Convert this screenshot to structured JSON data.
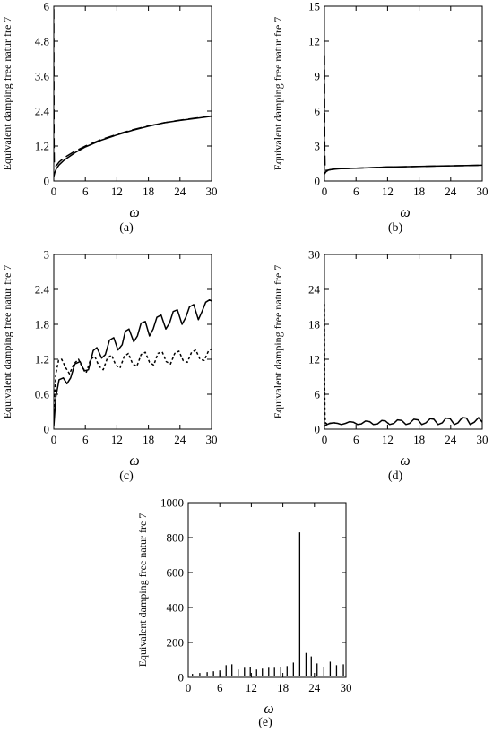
{
  "chart_data": [
    {
      "id": "a",
      "type": "line",
      "caption": "(a)",
      "xlabel": "ω",
      "ylabel": "Equivalent damping free natur fre 7",
      "xlim": [
        0,
        30
      ],
      "ylim": [
        0,
        6
      ],
      "xticks": [
        0,
        6,
        12,
        18,
        24,
        30
      ],
      "yticks": [
        0,
        1.2,
        2.4,
        3.6,
        4.8,
        6
      ],
      "ytick_labels": [
        "0",
        "1.2",
        "2.4",
        "3.6",
        "4.8",
        "6"
      ],
      "series": [
        {
          "style": "solid",
          "x": [
            0,
            0.2,
            0.5,
            1,
            2,
            4,
            6,
            9,
            12,
            15,
            18,
            21,
            24,
            27,
            30
          ],
          "values": [
            0.15,
            0.3,
            0.42,
            0.55,
            0.72,
            0.97,
            1.17,
            1.4,
            1.58,
            1.74,
            1.88,
            2.0,
            2.08,
            2.15,
            2.22
          ]
        },
        {
          "style": "dashed",
          "x": [
            0,
            0.05,
            0.1,
            0.3,
            0.6,
            1,
            2,
            4,
            6,
            9,
            12,
            15,
            18,
            21,
            24,
            27,
            30
          ],
          "values": [
            5.9,
            1.3,
            0.55,
            0.5,
            0.55,
            0.65,
            0.8,
            1.02,
            1.2,
            1.42,
            1.6,
            1.76,
            1.89,
            2.0,
            2.09,
            2.16,
            2.23
          ]
        }
      ]
    },
    {
      "id": "b",
      "type": "line",
      "caption": "(b)",
      "xlabel": "ω",
      "ylabel": "Equivalent damping free natur fre 7",
      "xlim": [
        0,
        30
      ],
      "ylim": [
        0,
        15
      ],
      "xticks": [
        0,
        6,
        12,
        18,
        24,
        30
      ],
      "yticks": [
        0,
        3,
        6,
        9,
        12,
        15
      ],
      "ytick_labels": [
        "0",
        "3",
        "6",
        "9",
        "12",
        "15"
      ],
      "series": [
        {
          "style": "solid",
          "x": [
            0,
            0.3,
            0.8,
            1.5,
            3,
            6,
            9,
            12,
            15,
            18,
            21,
            24,
            27,
            30
          ],
          "values": [
            0.6,
            0.8,
            0.95,
            1.0,
            1.05,
            1.1,
            1.15,
            1.2,
            1.22,
            1.25,
            1.28,
            1.3,
            1.32,
            1.35
          ]
        },
        {
          "style": "dashed",
          "x": [
            0,
            0.05,
            0.12,
            0.3,
            0.8,
            1.5,
            3,
            6,
            9,
            12,
            15,
            18,
            21,
            24,
            27,
            30
          ],
          "values": [
            10.8,
            3.0,
            1.2,
            0.9,
            0.95,
            1.0,
            1.05,
            1.1,
            1.15,
            1.2,
            1.22,
            1.25,
            1.28,
            1.3,
            1.32,
            1.35
          ]
        }
      ]
    },
    {
      "id": "c",
      "type": "line",
      "caption": "(c)",
      "xlabel": "ω",
      "ylabel": "Equivalent damping free natur fre 7",
      "xlim": [
        0,
        30
      ],
      "ylim": [
        0,
        3
      ],
      "xticks": [
        0,
        6,
        12,
        18,
        24,
        30
      ],
      "yticks": [
        0,
        0.6,
        1.2,
        1.8,
        2.4,
        3
      ],
      "ytick_labels": [
        "0",
        "0.6",
        "1.2",
        "1.8",
        "2.4",
        "3"
      ],
      "series": [
        {
          "style": "solid",
          "x": [
            0,
            0.4,
            1,
            1.8,
            2.5,
            3.2,
            4,
            5,
            5.8,
            6.6,
            7.5,
            8.2,
            9.1,
            9.8,
            10.6,
            11.4,
            12.2,
            13.0,
            13.6,
            14.3,
            15.2,
            15.9,
            16.6,
            17.4,
            18.2,
            18.9,
            19.6,
            20.4,
            21.3,
            22.0,
            22.7,
            23.5,
            24.4,
            25.1,
            25.8,
            26.6,
            27.5,
            28.2,
            28.9,
            29.6,
            30
          ],
          "values": [
            0.05,
            0.55,
            0.85,
            0.88,
            0.78,
            0.88,
            1.12,
            1.16,
            1.0,
            1.02,
            1.35,
            1.4,
            1.22,
            1.28,
            1.53,
            1.57,
            1.36,
            1.45,
            1.68,
            1.72,
            1.5,
            1.6,
            1.82,
            1.85,
            1.6,
            1.72,
            1.92,
            1.96,
            1.72,
            1.82,
            2.02,
            2.05,
            1.8,
            1.92,
            2.1,
            2.14,
            1.88,
            2.02,
            2.18,
            2.22,
            2.2
          ]
        },
        {
          "style": "dotted",
          "x": [
            0,
            0.4,
            0.9,
            1.5,
            2.3,
            3,
            3.8,
            4.7,
            5.5,
            6.2,
            7,
            7.8,
            8.6,
            9.4,
            10.2,
            11.0,
            11.8,
            12.6,
            13.4,
            14.2,
            15.0,
            15.8,
            16.6,
            17.4,
            18.2,
            19.0,
            19.8,
            20.6,
            21.4,
            22.2,
            23.0,
            23.8,
            24.6,
            25.4,
            26.2,
            27.0,
            27.8,
            28.6,
            29.4,
            30
          ],
          "values": [
            0.3,
            0.95,
            1.18,
            1.2,
            1.05,
            0.95,
            1.12,
            1.2,
            1.05,
            0.98,
            1.2,
            1.25,
            1.08,
            1.02,
            1.22,
            1.27,
            1.1,
            1.05,
            1.25,
            1.3,
            1.12,
            1.08,
            1.28,
            1.32,
            1.15,
            1.1,
            1.3,
            1.33,
            1.16,
            1.12,
            1.3,
            1.34,
            1.18,
            1.15,
            1.32,
            1.36,
            1.2,
            1.18,
            1.34,
            1.38
          ]
        }
      ]
    },
    {
      "id": "d",
      "type": "line",
      "caption": "(d)",
      "xlabel": "ω",
      "ylabel": "Equivalent damping free natur fre 7",
      "xlim": [
        0,
        30
      ],
      "ylim": [
        0,
        30
      ],
      "xticks": [
        0,
        6,
        12,
        18,
        24,
        30
      ],
      "yticks": [
        0,
        6,
        12,
        18,
        24,
        30
      ],
      "ytick_labels": [
        "0",
        "6",
        "12",
        "18",
        "24",
        "30"
      ],
      "series": [
        {
          "style": "solid",
          "x": [
            0,
            0.5,
            1,
            1.7,
            2.5,
            3.2,
            4,
            4.8,
            5.5,
            6.3,
            7,
            7.8,
            8.6,
            9.3,
            10.1,
            10.9,
            11.6,
            12.4,
            13.2,
            13.9,
            14.7,
            15.5,
            16.2,
            17.0,
            17.8,
            18.5,
            19.3,
            20.1,
            20.8,
            21.6,
            22.4,
            23.1,
            23.9,
            24.7,
            25.4,
            26.2,
            27.0,
            27.7,
            28.5,
            29.3,
            30
          ],
          "values": [
            0.5,
            0.8,
            1.0,
            1.1,
            1.0,
            0.8,
            1.0,
            1.3,
            1.2,
            0.8,
            0.9,
            1.4,
            1.3,
            0.8,
            0.9,
            1.5,
            1.4,
            0.8,
            1.0,
            1.6,
            1.5,
            0.8,
            1.0,
            1.7,
            1.6,
            0.8,
            1.1,
            1.8,
            1.7,
            0.8,
            1.1,
            1.9,
            1.8,
            0.8,
            1.1,
            2.0,
            1.9,
            0.8,
            1.2,
            2.0,
            1.2
          ]
        },
        {
          "style": "dotted",
          "x": [
            0,
            0.04,
            0.1,
            0.25,
            0.5,
            1,
            2
          ],
          "values": [
            21.5,
            8,
            2,
            1.0,
            0.9,
            1.0,
            1.1
          ]
        }
      ]
    },
    {
      "id": "e",
      "type": "line",
      "caption": "(e)",
      "xlabel": "ω",
      "ylabel": "Equivalent damping free natur fre 7",
      "xlim": [
        0,
        30
      ],
      "ylim": [
        0,
        1000
      ],
      "xticks": [
        0,
        6,
        12,
        18,
        24,
        30
      ],
      "yticks": [
        0,
        200,
        400,
        600,
        800,
        1000
      ],
      "ytick_labels": [
        "0",
        "200",
        "400",
        "600",
        "800",
        "1000"
      ],
      "spikes": {
        "baseline": 8,
        "x": [
          0.8,
          2.2,
          3.6,
          4.8,
          6.0,
          7.2,
          8.3,
          9.5,
          10.7,
          11.8,
          13.0,
          14.1,
          15.3,
          16.4,
          17.6,
          18.8,
          20.0,
          21.2,
          22.4,
          23.4,
          24.5,
          25.8,
          27.0,
          28.2,
          29.5
        ],
        "values": [
          20,
          25,
          30,
          35,
          40,
          70,
          75,
          45,
          55,
          60,
          45,
          50,
          55,
          55,
          60,
          65,
          85,
          830,
          140,
          120,
          80,
          60,
          90,
          70,
          75
        ]
      }
    }
  ]
}
